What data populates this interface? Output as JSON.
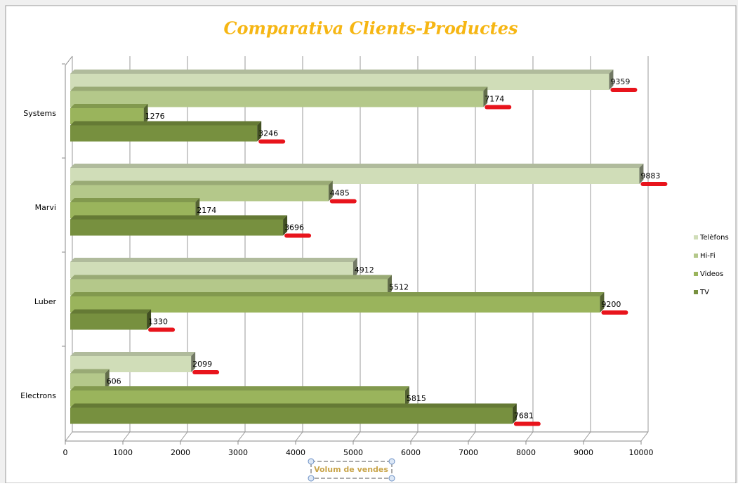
{
  "chart_data": {
    "type": "bar3d_horizontal",
    "title": "Comparativa Clients-Productes",
    "x_label": "Volum de vendes",
    "categories": [
      "Electrons",
      "Luber",
      "Marvi",
      "Systems"
    ],
    "series": [
      {
        "name": "Telèfons",
        "color": "#d0ddb8",
        "values": [
          2099,
          4912,
          9883,
          9359
        ]
      },
      {
        "name": "Hi-Fi",
        "color": "#b4c88a",
        "values": [
          606,
          5512,
          4485,
          7174
        ]
      },
      {
        "name": "Videos",
        "color": "#9ab45c",
        "values": [
          5815,
          9200,
          2174,
          1276
        ]
      },
      {
        "name": "TV",
        "color": "#77903f",
        "values": [
          7681,
          1330,
          3696,
          3246
        ]
      }
    ],
    "xlim": [
      0,
      10000
    ],
    "xticks": [
      0,
      1000,
      2000,
      3000,
      4000,
      5000,
      6000,
      7000,
      8000,
      9000,
      10000
    ],
    "grid": true,
    "legend": "right"
  }
}
